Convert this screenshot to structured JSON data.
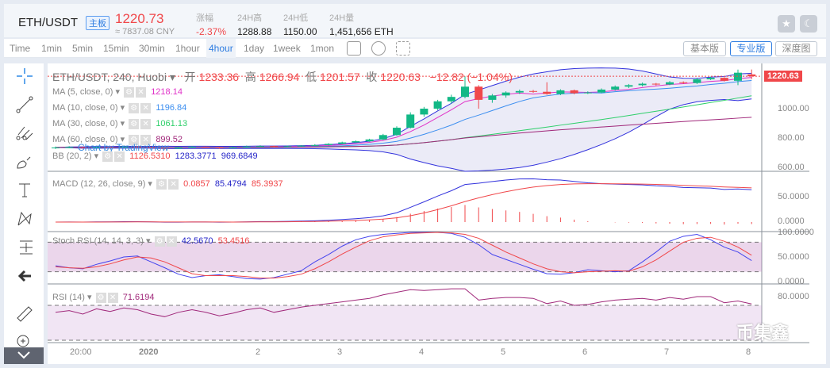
{
  "header": {
    "pair": "ETH/USDT",
    "board_badge": "主板",
    "last_price": "1220.73",
    "cny_price": "≈ 7837.08 CNY",
    "stats": [
      {
        "label": "涨幅",
        "value": "-2.37%",
        "color": "#f0474a"
      },
      {
        "label": "24H高",
        "value": "1288.88"
      },
      {
        "label": "24H低",
        "value": "1150.00"
      },
      {
        "label": "24H量",
        "value": "1,451,656 ETH"
      }
    ],
    "star_icon": "star-icon",
    "theme_icon": "moon-icon"
  },
  "toolbar": {
    "intervals": [
      "Time",
      "1min",
      "5min",
      "15min",
      "30min",
      "1hour",
      "4hour",
      "1day",
      "1week",
      "1mon"
    ],
    "active": "4hour",
    "icons": [
      "indicator-icon",
      "settings-hexagon-icon",
      "fullscreen-icon"
    ],
    "views": [
      "基本版",
      "专业版",
      "深度图"
    ],
    "active_view": "专业版"
  },
  "drawing_tools": [
    "crosshair-icon",
    "trend-line-icon",
    "pitchfork-icon",
    "brush-icon",
    "text-icon",
    "pattern-icon",
    "fib-icon",
    "back-arrow-icon",
    "ruler-icon",
    "zoom-in-icon",
    "collapse-chevron-icon"
  ],
  "legend": {
    "title": "ETH/USDT, 240, Huobi",
    "open_label": "开",
    "open": "1233.36",
    "high_label": "高",
    "high": "1266.94",
    "low_label": "低",
    "low": "1201.57",
    "close_label": "收",
    "close": "1220.63",
    "change": "−12.82 (−1.04%)",
    "ma": [
      {
        "label": "MA (5, close, 0)",
        "value": "1218.14",
        "color": "#e032c8"
      },
      {
        "label": "MA (10, close, 0)",
        "value": "1196.84",
        "color": "#3b8ef0"
      },
      {
        "label": "MA (30, close, 0)",
        "value": "1061.13",
        "color": "#2ecf6a"
      },
      {
        "label": "MA (60, close, 0)",
        "value": "899.52",
        "color": "#a0287a"
      }
    ],
    "bb": {
      "label": "BB (20, 2)",
      "values": [
        "1126.5310",
        "1283.3771",
        "969.6849"
      ]
    },
    "macd": {
      "label": "MACD (12, 26, close, 9)",
      "values": [
        "0.0857",
        "85.4794",
        "85.3937"
      ]
    },
    "stoch": {
      "label": "Stoch RSI (14, 14, 3, 3)",
      "values": [
        "42.5670",
        "53.4516"
      ]
    },
    "rsi": {
      "label": "RSI (14)",
      "value": "71.6194"
    },
    "attribution": "Chart by TradingView"
  },
  "price_axis": {
    "main": [
      "1000.00",
      "800.00",
      "600.00"
    ],
    "last_price_tag": "1220.63",
    "macd": [
      "50.0000",
      "0.0000"
    ],
    "stoch": [
      "100.0000",
      "50.0000",
      "0.0000"
    ],
    "rsi": [
      "80.0000"
    ]
  },
  "time_axis": [
    "20:00",
    "2020",
    "2",
    "3",
    "4",
    "5",
    "6",
    "7",
    "8"
  ],
  "watermark": "币集鑫",
  "chart_data": {
    "type": "candlestick",
    "interval": "4h",
    "ylim_main": [
      560,
      1300
    ],
    "ohlc": [
      [
        730,
        742,
        726,
        735
      ],
      [
        735,
        744,
        730,
        738
      ],
      [
        738,
        741,
        728,
        732
      ],
      [
        732,
        746,
        730,
        740
      ],
      [
        740,
        743,
        731,
        736
      ],
      [
        736,
        748,
        733,
        742
      ],
      [
        742,
        745,
        734,
        738
      ],
      [
        738,
        741,
        729,
        733
      ],
      [
        733,
        736,
        722,
        728
      ],
      [
        728,
        740,
        725,
        735
      ],
      [
        735,
        745,
        732,
        740
      ],
      [
        740,
        743,
        733,
        737
      ],
      [
        737,
        739,
        727,
        731
      ],
      [
        731,
        741,
        729,
        736
      ],
      [
        736,
        748,
        734,
        742
      ],
      [
        742,
        750,
        739,
        745
      ],
      [
        745,
        748,
        735,
        739
      ],
      [
        739,
        749,
        737,
        744
      ],
      [
        744,
        752,
        741,
        748
      ],
      [
        748,
        758,
        745,
        752
      ],
      [
        752,
        765,
        749,
        760
      ],
      [
        760,
        775,
        757,
        770
      ],
      [
        770,
        783,
        766,
        778
      ],
      [
        778,
        795,
        774,
        790
      ],
      [
        790,
        828,
        786,
        820
      ],
      [
        820,
        880,
        815,
        870
      ],
      [
        870,
        975,
        865,
        960
      ],
      [
        960,
        1012,
        945,
        1000
      ],
      [
        1000,
        1060,
        990,
        1050
      ],
      [
        1050,
        1095,
        1035,
        1080
      ],
      [
        1080,
        1220,
        1070,
        1150
      ],
      [
        1150,
        1160,
        1000,
        1060
      ],
      [
        1060,
        1100,
        1040,
        1090
      ],
      [
        1090,
        1118,
        1075,
        1110
      ],
      [
        1110,
        1130,
        1100,
        1120
      ],
      [
        1120,
        1128,
        1108,
        1115
      ],
      [
        1115,
        1180,
        1095,
        1100
      ],
      [
        1100,
        1132,
        1092,
        1125
      ],
      [
        1125,
        1130,
        1098,
        1105
      ],
      [
        1105,
        1118,
        1100,
        1110
      ],
      [
        1110,
        1138,
        1105,
        1130
      ],
      [
        1130,
        1158,
        1122,
        1150
      ],
      [
        1150,
        1168,
        1140,
        1160
      ],
      [
        1160,
        1178,
        1152,
        1170
      ],
      [
        1170,
        1175,
        1158,
        1165
      ],
      [
        1165,
        1188,
        1160,
        1180
      ],
      [
        1180,
        1186,
        1168,
        1175
      ],
      [
        1175,
        1210,
        1168,
        1200
      ],
      [
        1200,
        1218,
        1195,
        1210
      ],
      [
        1210,
        1214,
        1185,
        1190
      ],
      [
        1190,
        1266,
        1160,
        1245
      ],
      [
        1233.36,
        1266.94,
        1201.57,
        1220.63
      ]
    ],
    "stoch_k": [
      32,
      28,
      26,
      35,
      42,
      50,
      52,
      40,
      28,
      15,
      8,
      12,
      14,
      10,
      6,
      5,
      8,
      15,
      22,
      40,
      55,
      72,
      85,
      92,
      96,
      98,
      100,
      100,
      100,
      98,
      90,
      75,
      55,
      45,
      35,
      25,
      16,
      15,
      18,
      24,
      22,
      20,
      22,
      40,
      60,
      82,
      92,
      96,
      85,
      70,
      60,
      42.567
    ],
    "stoch_d": [
      30,
      28,
      27,
      30,
      36,
      44,
      50,
      48,
      40,
      28,
      16,
      12,
      12,
      12,
      10,
      7,
      7,
      10,
      15,
      26,
      40,
      56,
      70,
      83,
      91,
      95,
      98,
      99,
      100,
      99,
      96,
      88,
      74,
      60,
      48,
      36,
      26,
      20,
      18,
      20,
      21,
      22,
      21,
      30,
      44,
      62,
      80,
      88,
      90,
      82,
      70,
      53.4516
    ],
    "rsi": [
      62,
      64,
      60,
      66,
      63,
      67,
      65,
      60,
      57,
      62,
      65,
      62,
      58,
      61,
      65,
      67,
      62,
      65,
      68,
      70,
      72,
      74,
      76,
      78,
      82,
      85,
      88,
      87,
      88,
      89,
      89,
      76,
      78,
      79,
      79,
      78,
      72,
      75,
      70,
      71,
      74,
      76,
      77,
      78,
      76,
      79,
      77,
      80,
      80,
      73,
      75,
      71.6194
    ],
    "rsi_band": [
      30,
      70
    ],
    "stoch_band": [
      20,
      80
    ]
  }
}
